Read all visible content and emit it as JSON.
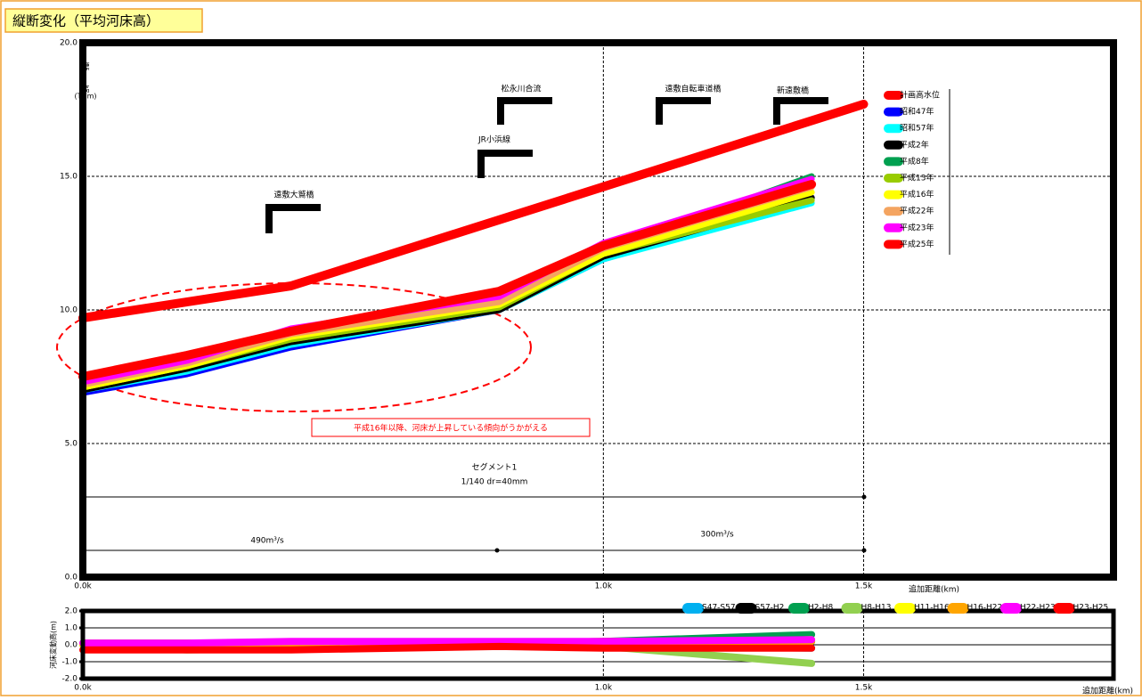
{
  "chart_data": [
    {
      "type": "line",
      "title": "縦断変化（平均河床高）",
      "ylabel": "標高",
      "ylabel_unit": "(TP.m)",
      "xlabel": "追加距離(km)",
      "xlim": [
        0,
        1.98
      ],
      "ylim": [
        0,
        20
      ],
      "grid": true,
      "legend": "right",
      "xticks": [
        {
          "value": 0,
          "label": "0.0k"
        },
        {
          "value": 1.0,
          "label": "1.0k"
        },
        {
          "value": 1.5,
          "label": "1.5k"
        }
      ],
      "yticks": [
        {
          "value": 0,
          "label": "0.0"
        },
        {
          "value": 5,
          "label": "5.0"
        },
        {
          "value": 10,
          "label": "10.0"
        },
        {
          "value": 15,
          "label": "15.0"
        },
        {
          "value": 20,
          "label": "20.0"
        }
      ],
      "x": [
        0,
        0.2,
        0.4,
        0.8,
        1.0,
        1.4
      ],
      "series": [
        {
          "name": "計画高水位",
          "color": "#ff0000",
          "x": [
            0,
            0.4,
            1.5
          ],
          "values": [
            9.7,
            10.9,
            17.7
          ]
        },
        {
          "name": "昭和47年",
          "color": "#0000ff",
          "values": [
            6.9,
            7.6,
            8.6,
            10.0,
            11.9,
            14.2
          ]
        },
        {
          "name": "昭和57年",
          "color": "#00ffff",
          "values": [
            7.0,
            7.7,
            8.7,
            10.0,
            11.9,
            14.0
          ]
        },
        {
          "name": "平成2年",
          "color": "#000000",
          "values": [
            7.0,
            7.8,
            8.8,
            10.0,
            12.0,
            14.2
          ]
        },
        {
          "name": "平成8年",
          "color": "#00a050",
          "values": [
            7.1,
            7.9,
            8.9,
            10.1,
            12.2,
            15.0
          ]
        },
        {
          "name": "平成13年",
          "color": "#99cc00",
          "values": [
            7.1,
            7.9,
            8.9,
            10.1,
            12.1,
            14.1
          ]
        },
        {
          "name": "平成16年",
          "color": "#ffff00",
          "values": [
            7.1,
            7.9,
            9.0,
            10.2,
            12.1,
            14.4
          ]
        },
        {
          "name": "平成22年",
          "color": "#f4a460",
          "values": [
            7.2,
            8.0,
            9.1,
            10.3,
            12.3,
            14.6
          ]
        },
        {
          "name": "平成23年",
          "color": "#ff00ff",
          "values": [
            7.3,
            8.1,
            9.3,
            10.5,
            12.5,
            14.9
          ]
        },
        {
          "name": "平成25年",
          "color": "#ff0000",
          "values": [
            7.5,
            8.3,
            9.2,
            10.7,
            12.4,
            14.7
          ]
        }
      ],
      "annotations": [
        "松永川合流",
        "JR小浜線",
        "遠敷自転車道橋",
        "新遠敷橋",
        "遠敷大鷲橋",
        "平成16年以降、河床が上昇している傾向がうかがえる",
        "セグメント1",
        "1/140 dr=40mm",
        "490m³/s",
        "300m³/s"
      ]
    },
    {
      "type": "line",
      "ylabel": "河床変動高(m)",
      "xlabel": "追加距離(km)",
      "xlim": [
        0,
        1.98
      ],
      "ylim": [
        -2,
        2
      ],
      "grid": true,
      "legend": "top",
      "xticks": [
        {
          "value": 0,
          "label": "0.0k"
        },
        {
          "value": 1.0,
          "label": "1.0k"
        },
        {
          "value": 1.5,
          "label": "1.5k"
        }
      ],
      "yticks": [
        {
          "value": -2,
          "label": "-2.0"
        },
        {
          "value": -1,
          "label": "-1.0"
        },
        {
          "value": 0,
          "label": "0.0"
        },
        {
          "value": 1,
          "label": "1.0"
        },
        {
          "value": 2,
          "label": "2.0"
        }
      ],
      "x": [
        0,
        0.2,
        0.4,
        0.8,
        1.0,
        1.4
      ],
      "series": [
        {
          "name": "S47-S57",
          "color": "#00b0f0",
          "values": [
            0.1,
            0.1,
            0.1,
            0,
            0,
            -0.2
          ]
        },
        {
          "name": "S57-H2",
          "color": "#000000",
          "values": [
            0,
            0.1,
            0.1,
            -0.1,
            0.1,
            0.2
          ]
        },
        {
          "name": "H2-H8",
          "color": "#00a050",
          "values": [
            0.1,
            0.1,
            0.1,
            0.1,
            0.2,
            0.6
          ]
        },
        {
          "name": "H8-H13",
          "color": "#92d050",
          "values": [
            0,
            -0.3,
            -0.2,
            0,
            -0.1,
            -1.1
          ]
        },
        {
          "name": "H11-H16",
          "color": "#ffff00",
          "values": [
            0,
            0,
            0.1,
            0.1,
            0,
            0.3
          ]
        },
        {
          "name": "H16-H22",
          "color": "#ffa500",
          "values": [
            0.1,
            0.1,
            0.1,
            0.1,
            0.2,
            0.2
          ]
        },
        {
          "name": "H22-H23",
          "color": "#ff00ff",
          "values": [
            0.1,
            0.1,
            0.2,
            0.2,
            0.2,
            0.3
          ]
        },
        {
          "name": "H23-H25",
          "color": "#ff0000",
          "values": [
            -0.3,
            -0.3,
            -0.3,
            -0.1,
            -0.2,
            -0.2
          ]
        }
      ]
    }
  ]
}
